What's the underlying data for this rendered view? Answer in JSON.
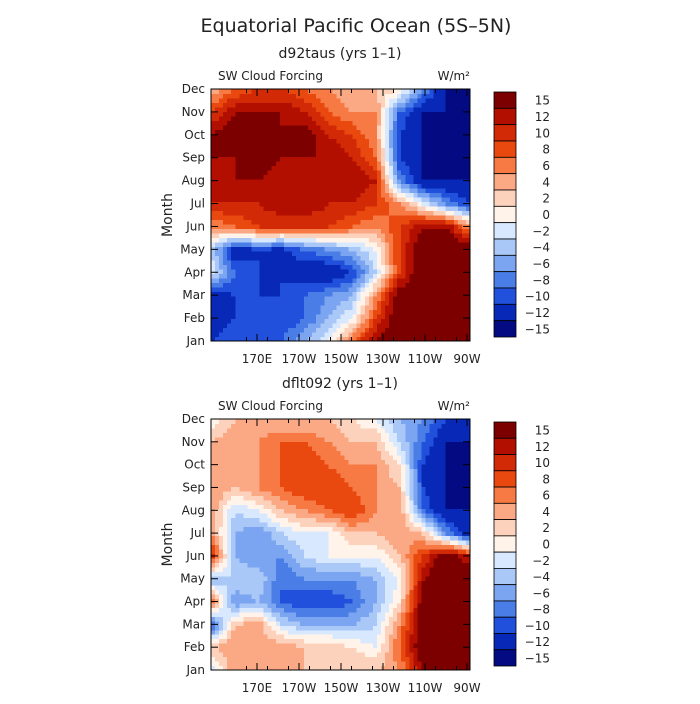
{
  "main_title": "Equatorial Pacific Ocean (5S–5N)",
  "color_scale": {
    "labels": [
      "15",
      "12",
      "10",
      "8",
      "6",
      "4",
      "2",
      "0",
      "−2",
      "−4",
      "−6",
      "−8",
      "−10",
      "−12",
      "−15"
    ],
    "colors_top_to_bottom": [
      "#7d0000",
      "#b20f00",
      "#d22a06",
      "#e9480f",
      "#f77a45",
      "#fba884",
      "#fdd2bd",
      "#fff3ea",
      "#d8e8ff",
      "#aac8f7",
      "#7ba5f0",
      "#4a7de6",
      "#2050dc",
      "#0828b8",
      "#030a82"
    ]
  },
  "chart_data": [
    {
      "type": "heatmap",
      "title": "d92taus (yrs 1–1)",
      "variable": "SW Cloud Forcing",
      "units": "W/m²",
      "xlabel": "",
      "ylabel": "Month",
      "x_ticks": [
        "170E",
        "170W",
        "150W",
        "130W",
        "110W",
        "90W"
      ],
      "y_ticks": [
        "Jan",
        "Feb",
        "Mar",
        "Apr",
        "May",
        "Jun",
        "Jul",
        "Aug",
        "Sep",
        "Oct",
        "Nov",
        "Dec"
      ],
      "x_range": [
        "160E",
        "90W"
      ],
      "levels": [
        -15,
        -12,
        -10,
        -8,
        -6,
        -4,
        -2,
        0,
        2,
        4,
        6,
        8,
        10,
        12,
        15
      ],
      "columns": [
        "160E",
        "170E",
        "180",
        "170W",
        "160W",
        "150W",
        "140W",
        "130W",
        "120W",
        "110W",
        "100W",
        "90W"
      ],
      "values_by_month": [
        [
          -12,
          -10,
          -12,
          -10,
          -6,
          -2,
          6,
          12,
          15,
          15,
          15,
          15
        ],
        [
          -14,
          -12,
          -10,
          -12,
          -10,
          -6,
          -2,
          8,
          15,
          15,
          15,
          15
        ],
        [
          -14,
          -12,
          -12,
          -12,
          -10,
          -8,
          -6,
          4,
          14,
          15,
          15,
          15
        ],
        [
          -2,
          -10,
          -12,
          -12,
          -14,
          -15,
          -12,
          -4,
          8,
          15,
          15,
          15
        ],
        [
          -4,
          -14,
          -12,
          -13,
          -10,
          -8,
          -6,
          -2,
          8,
          15,
          15,
          15
        ],
        [
          4,
          6,
          8,
          8,
          8,
          8,
          6,
          4,
          8,
          12,
          12,
          4
        ],
        [
          10,
          10,
          10,
          12,
          12,
          10,
          10,
          8,
          4,
          -2,
          -8,
          -12
        ],
        [
          12,
          12,
          12,
          10,
          10,
          10,
          12,
          10,
          -8,
          -15,
          -15,
          -15
        ],
        [
          12,
          12,
          14,
          12,
          12,
          12,
          10,
          6,
          -12,
          -15,
          -15,
          -15
        ],
        [
          12,
          14,
          14,
          12,
          14,
          10,
          8,
          4,
          -12,
          -15,
          -15,
          -15
        ],
        [
          8,
          12,
          12,
          12,
          10,
          6,
          4,
          4,
          -10,
          -15,
          -15,
          -15
        ],
        [
          2,
          6,
          8,
          8,
          6,
          4,
          2,
          2,
          0,
          -8,
          -15,
          -15
        ]
      ]
    },
    {
      "type": "heatmap",
      "title": "dflt092 (yrs 1–1)",
      "variable": "SW Cloud Forcing",
      "units": "W/m²",
      "xlabel": "",
      "ylabel": "Month",
      "x_ticks": [
        "170E",
        "170W",
        "150W",
        "130W",
        "110W",
        "90W"
      ],
      "y_ticks": [
        "Jan",
        "Feb",
        "Mar",
        "Apr",
        "May",
        "Jun",
        "Jul",
        "Aug",
        "Sep",
        "Oct",
        "Nov",
        "Dec"
      ],
      "x_range": [
        "160E",
        "90W"
      ],
      "levels": [
        -15,
        -12,
        -10,
        -8,
        -6,
        -4,
        -2,
        0,
        2,
        4,
        6,
        8,
        10,
        12,
        15
      ],
      "columns": [
        "160E",
        "170E",
        "180",
        "170W",
        "160W",
        "150W",
        "140W",
        "130W",
        "120W",
        "110W",
        "100W",
        "90W"
      ],
      "values_by_month": [
        [
          -4,
          4,
          2,
          2,
          2,
          2,
          2,
          2,
          4,
          12,
          15,
          15
        ],
        [
          2,
          4,
          2,
          4,
          2,
          2,
          0,
          -2,
          6,
          15,
          15,
          15
        ],
        [
          -12,
          2,
          4,
          -4,
          -6,
          -6,
          -6,
          -4,
          4,
          15,
          15,
          15
        ],
        [
          6,
          -8,
          -6,
          -10,
          -12,
          -12,
          -10,
          -6,
          0,
          14,
          15,
          15
        ],
        [
          -6,
          -4,
          -4,
          -10,
          -8,
          -8,
          -8,
          -6,
          -2,
          12,
          15,
          15
        ],
        [
          10,
          -6,
          -8,
          -8,
          -4,
          -2,
          -2,
          -2,
          2,
          8,
          15,
          10
        ],
        [
          4,
          -6,
          -8,
          -4,
          -2,
          -2,
          2,
          2,
          4,
          2,
          -8,
          -15
        ],
        [
          4,
          -4,
          -2,
          2,
          4,
          6,
          8,
          4,
          4,
          -10,
          -15,
          -15
        ],
        [
          4,
          2,
          4,
          6,
          8,
          8,
          6,
          4,
          2,
          -12,
          -15,
          -15
        ],
        [
          2,
          4,
          4,
          6,
          8,
          6,
          4,
          4,
          0,
          -12,
          -15,
          -15
        ],
        [
          2,
          4,
          4,
          6,
          6,
          4,
          2,
          2,
          -4,
          -10,
          -15,
          -15
        ],
        [
          -2,
          2,
          2,
          2,
          2,
          2,
          0,
          -2,
          -6,
          -8,
          -12,
          -15
        ]
      ]
    }
  ]
}
